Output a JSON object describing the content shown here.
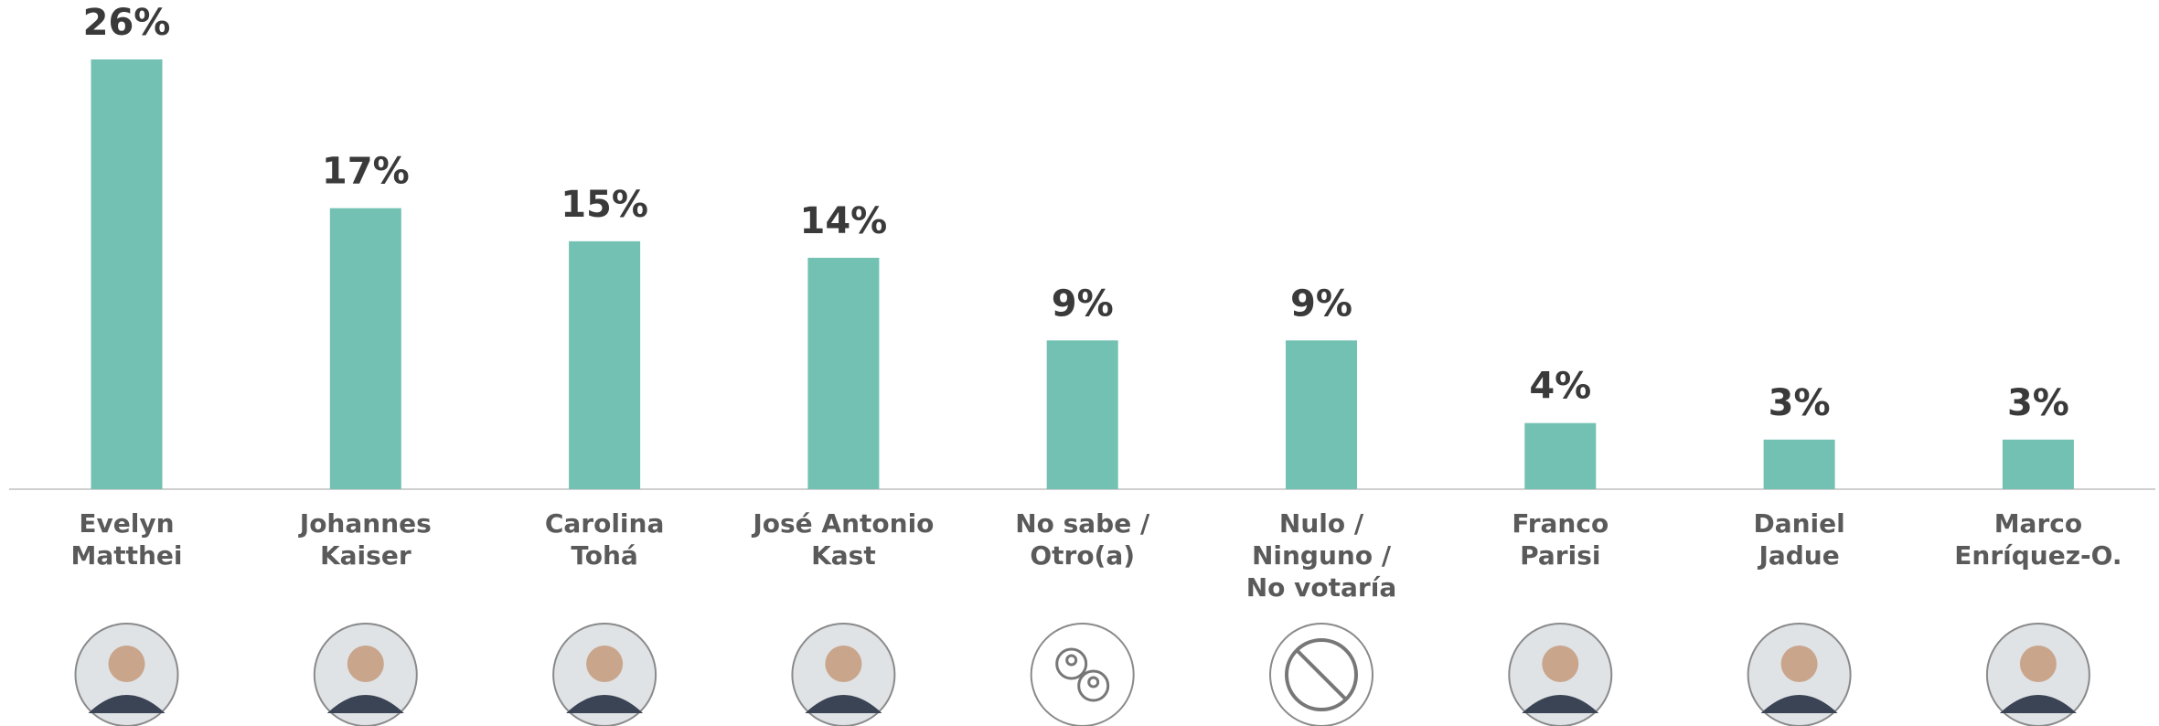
{
  "chart_data": {
    "type": "bar",
    "categories": [
      [
        "Evelyn",
        "Matthei"
      ],
      [
        "Johannes",
        "Kaiser"
      ],
      [
        "Carolina",
        "Tohá"
      ],
      [
        "José Antonio",
        "Kast"
      ],
      [
        "No sabe /",
        "Otro(a)"
      ],
      [
        "Nulo /",
        "Ninguno /",
        "No votaría"
      ],
      [
        "Franco",
        "Parisi"
      ],
      [
        "Daniel",
        "Jadue"
      ],
      [
        "Marco",
        "Enríquez-O."
      ]
    ],
    "values": [
      26,
      17,
      15,
      14,
      9,
      9,
      4,
      3,
      3
    ],
    "value_labels": [
      "26%",
      "17%",
      "15%",
      "14%",
      "9%",
      "9%",
      "4%",
      "3%",
      "3%"
    ],
    "color": "#72c1b3",
    "ylim": [
      0,
      26
    ]
  }
}
